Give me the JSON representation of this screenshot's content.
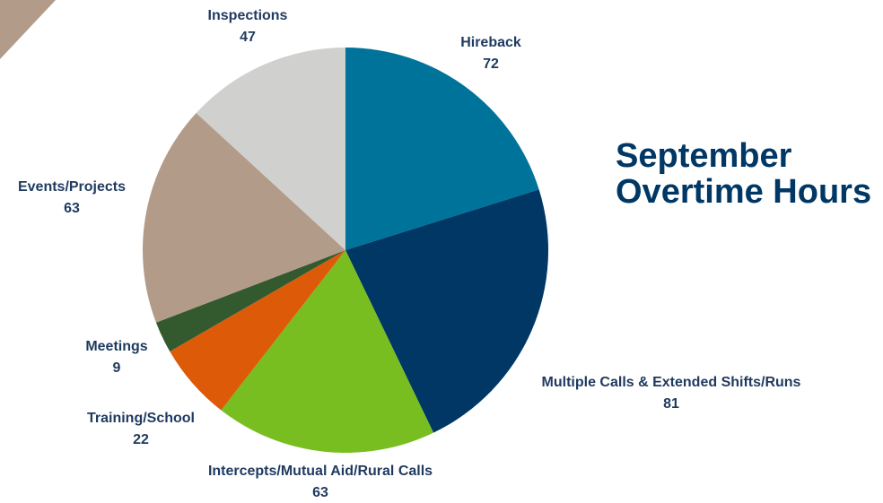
{
  "chart_data": {
    "type": "pie",
    "title": "September Overtime Hours",
    "categories": [
      "Hireback",
      "Multiple Calls & Extended Shifts/Runs",
      "Intercepts/Mutual Aid/Rural Calls",
      "Training/School",
      "Meetings",
      "Events/Projects",
      "Inspections"
    ],
    "values": [
      72,
      81,
      63,
      22,
      9,
      63,
      47
    ],
    "colors": [
      "#00739a",
      "#003764",
      "#78be20",
      "#dd5a09",
      "#335a2e",
      "#b39b8a",
      "#d0d0ce"
    ]
  }
}
